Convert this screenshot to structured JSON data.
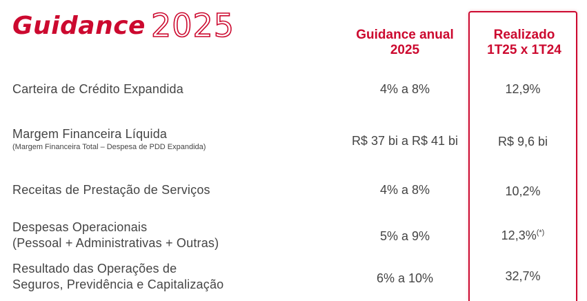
{
  "title": {
    "word": "Guidance",
    "year": "2025"
  },
  "columns": {
    "guidance": [
      "Guidance anual",
      "2025"
    ],
    "realizado": [
      "Realizado",
      "1T25 x 1T24"
    ]
  },
  "rows": [
    {
      "label": [
        "Carteira de Crédito Expandida"
      ],
      "sub": "",
      "guidance": "4% a 8%",
      "realizado": "12,9%",
      "note": ""
    },
    {
      "label": [
        "Margem Financeira Líquida"
      ],
      "sub": "(Margem Financeira Total – Despesa de PDD Expandida)",
      "guidance": "R$ 37 bi a R$ 41 bi",
      "realizado": "R$ 9,6 bi",
      "note": ""
    },
    {
      "label": [
        "Receitas de Prestação de Serviços"
      ],
      "sub": "",
      "guidance": "4% a 8%",
      "realizado": "10,2%",
      "note": ""
    },
    {
      "label": [
        "Despesas Operacionais",
        "(Pessoal + Administrativas + Outras)"
      ],
      "sub": "",
      "guidance": "5% a 9%",
      "realizado": "12,3%",
      "note": "(*)"
    },
    {
      "label": [
        "Resultado das Operações de",
        "Seguros, Previdência e Capitalização"
      ],
      "sub": "",
      "guidance": "6% a 10%",
      "realizado": "32,7%",
      "note": ""
    }
  ],
  "colors": {
    "accent": "#cc092f",
    "text": "#444444"
  }
}
